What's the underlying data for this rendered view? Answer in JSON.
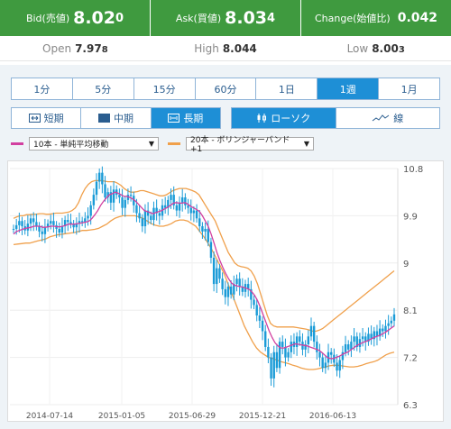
{
  "quote": {
    "bid_label": "Bid(売値)",
    "bid_main": "8.02",
    "bid_pip": "0",
    "ask_label": "Ask(買値)",
    "ask_main": "8.03",
    "ask_pip": "4",
    "change_label": "Change(始値比)",
    "change_value": "0.042",
    "open_label": "Open",
    "open_main": "7.97",
    "open_pip": "8",
    "high_label": "High",
    "high_value": "8.044",
    "low_label": "Low",
    "low_main": "8.00",
    "low_pip": "3"
  },
  "colors": {
    "header_green": "#3f9a3f",
    "active_blue": "#1e8fd6",
    "ma_line": "#d23fa0",
    "bb_line": "#f0a04b",
    "candle": "#1a9bd7"
  },
  "periods": [
    {
      "label": "1分",
      "active": false
    },
    {
      "label": "5分",
      "active": false
    },
    {
      "label": "15分",
      "active": false
    },
    {
      "label": "60分",
      "active": false
    },
    {
      "label": "1日",
      "active": false
    },
    {
      "label": "1週",
      "active": true
    },
    {
      "label": "1月",
      "active": false
    }
  ],
  "ranges": {
    "short": "短期",
    "mid": "中期",
    "long": "長期",
    "active": "long"
  },
  "chart_types": {
    "candle": "ローソク",
    "line": "線",
    "active": "candle"
  },
  "indicators": {
    "ma_select": "10本 - 単純平均移動",
    "bb_select": "20本 - ボリンジャーバンド+1"
  },
  "chart_data": {
    "type": "candlestick",
    "x_ticks": [
      "2014-07-14",
      "2015-01-05",
      "2015-06-29",
      "2015-12-21",
      "2016-06-13"
    ],
    "y_ticks": [
      "10.8",
      "9.9",
      "9",
      "8.1",
      "7.2",
      "6.3"
    ],
    "ylim": [
      6.3,
      10.8
    ],
    "close": [
      9.65,
      9.72,
      9.8,
      9.7,
      9.62,
      9.75,
      9.85,
      9.78,
      9.7,
      9.6,
      9.55,
      9.68,
      9.75,
      9.8,
      9.72,
      9.65,
      9.58,
      9.7,
      9.82,
      9.78,
      9.74,
      9.68,
      9.75,
      9.8,
      9.78,
      9.85,
      9.9,
      10.1,
      10.3,
      10.55,
      10.72,
      10.5,
      10.25,
      10.35,
      10.15,
      10.4,
      10.3,
      10.25,
      10.05,
      10.2,
      10.3,
      10.28,
      10.1,
      9.95,
      9.85,
      9.7,
      10.0,
      9.9,
      9.82,
      10.05,
      9.95,
      9.9,
      10.1,
      10.05,
      10.2,
      10.3,
      10.1,
      10.0,
      10.15,
      10.25,
      10.1,
      10.05,
      9.95,
      10.0,
      9.85,
      9.7,
      9.6,
      9.65,
      9.4,
      9.1,
      8.6,
      8.9,
      8.7,
      8.5,
      8.35,
      8.55,
      8.4,
      8.6,
      8.7,
      8.55,
      8.45,
      8.6,
      8.5,
      8.3,
      8.2,
      8.0,
      7.9,
      7.7,
      7.4,
      7.2,
      6.8,
      7.3,
      7.0,
      7.5,
      7.4,
      7.2,
      7.3,
      7.5,
      7.4,
      7.6,
      7.5,
      7.35,
      7.45,
      7.6,
      7.8,
      7.5,
      7.3,
      7.2,
      7.0,
      7.1,
      7.3,
      7.25,
      7.1,
      6.95,
      7.15,
      7.3,
      7.45,
      7.35,
      7.5,
      7.6,
      7.4,
      7.55,
      7.6,
      7.5,
      7.65,
      7.55,
      7.7,
      7.6,
      7.75,
      7.7,
      7.8,
      7.85,
      7.9,
      8.02
    ],
    "ma10": [
      9.55,
      9.6,
      9.62,
      9.64,
      9.66,
      9.67,
      9.68,
      9.7,
      9.7,
      9.7,
      9.68,
      9.68,
      9.69,
      9.7,
      9.7,
      9.69,
      9.69,
      9.7,
      9.72,
      9.74,
      9.74,
      9.74,
      9.75,
      9.76,
      9.77,
      9.78,
      9.8,
      9.85,
      9.92,
      10.0,
      10.1,
      10.18,
      10.24,
      10.3,
      10.32,
      10.35,
      10.33,
      10.3,
      10.27,
      10.27,
      10.25,
      10.22,
      10.18,
      10.12,
      10.06,
      10.0,
      9.98,
      9.96,
      9.94,
      9.96,
      9.98,
      10.0,
      10.03,
      10.06,
      10.1,
      10.14,
      10.15,
      10.14,
      10.14,
      10.15,
      10.12,
      10.08,
      10.05,
      10.02,
      9.98,
      9.9,
      9.8,
      9.7,
      9.55,
      9.38,
      9.2,
      9.05,
      8.92,
      8.8,
      8.7,
      8.62,
      8.58,
      8.56,
      8.55,
      8.54,
      8.52,
      8.5,
      8.45,
      8.38,
      8.28,
      8.15,
      8.0,
      7.85,
      7.7,
      7.58,
      7.48,
      7.42,
      7.38,
      7.38,
      7.4,
      7.42,
      7.44,
      7.46,
      7.45,
      7.44,
      7.43,
      7.42,
      7.4,
      7.38,
      7.36,
      7.34,
      7.3,
      7.25,
      7.2,
      7.18,
      7.18,
      7.2,
      7.22,
      7.25,
      7.28,
      7.3,
      7.34,
      7.38,
      7.42,
      7.45,
      7.48,
      7.5,
      7.52,
      7.55,
      7.58,
      7.6,
      7.62,
      7.65,
      7.68,
      7.72,
      7.76,
      7.8
    ],
    "bb_upper": [
      9.85,
      9.88,
      9.9,
      9.9,
      9.92,
      9.92,
      9.93,
      9.93,
      9.94,
      9.94,
      9.93,
      9.93,
      9.94,
      9.95,
      9.95,
      9.95,
      9.96,
      9.97,
      10.0,
      10.05,
      10.15,
      10.3,
      10.42,
      10.5,
      10.55,
      10.57,
      10.57,
      10.57,
      10.56,
      10.55,
      10.55,
      10.55,
      10.52,
      10.48,
      10.42,
      10.38,
      10.35,
      10.35,
      10.36,
      10.38,
      10.38,
      10.36,
      10.34,
      10.32,
      10.3,
      10.28,
      10.28,
      10.3,
      10.34,
      10.38,
      10.4,
      10.42,
      10.42,
      10.42,
      10.4,
      10.38,
      10.35,
      10.3,
      10.2,
      10.1,
      10.0,
      9.9,
      9.8,
      9.65,
      9.5,
      9.35,
      9.2,
      9.1,
      9.0,
      8.95,
      8.93,
      8.92,
      8.9,
      8.85,
      8.75,
      8.6,
      8.4,
      8.2,
      8.0,
      7.85,
      7.8,
      7.78,
      7.78,
      7.78,
      7.78,
      7.78,
      7.78,
      7.77,
      7.76,
      7.75,
      7.74,
      7.72,
      7.7,
      7.7,
      7.72,
      7.75,
      7.8,
      7.85,
      7.9,
      7.95,
      8.0,
      8.05,
      8.1,
      8.15,
      8.2,
      8.25,
      8.3,
      8.35,
      8.4,
      8.45,
      8.5,
      8.55,
      8.6,
      8.65,
      8.7,
      8.75,
      8.8,
      8.85
    ],
    "bb_lower": [
      9.35,
      9.36,
      9.37,
      9.38,
      9.38,
      9.4,
      9.42,
      9.44,
      9.46,
      9.5,
      9.52,
      9.54,
      9.55,
      9.56,
      9.57,
      9.58,
      9.6,
      9.62,
      9.62,
      9.63,
      9.64,
      9.66,
      9.7,
      9.74,
      9.8,
      9.85,
      9.88,
      9.9,
      9.9,
      9.9,
      9.9,
      9.88,
      9.85,
      9.8,
      9.75,
      9.72,
      9.7,
      9.7,
      9.72,
      9.75,
      9.8,
      9.82,
      9.82,
      9.8,
      9.75,
      9.7,
      9.6,
      9.5,
      9.38,
      9.25,
      9.1,
      8.95,
      8.8,
      8.6,
      8.4,
      8.2,
      8.0,
      7.8,
      7.65,
      7.5,
      7.38,
      7.3,
      7.25,
      7.2,
      7.18,
      7.15,
      7.12,
      7.1,
      7.08,
      7.05,
      7.03,
      7.0,
      6.98,
      6.97,
      6.97,
      6.98,
      7.0,
      7.02,
      7.04,
      7.05,
      7.05,
      7.04,
      7.03,
      7.02,
      7.02,
      7.03,
      7.05,
      7.08,
      7.1,
      7.12,
      7.15,
      7.2,
      7.25,
      7.28,
      7.3
    ]
  }
}
